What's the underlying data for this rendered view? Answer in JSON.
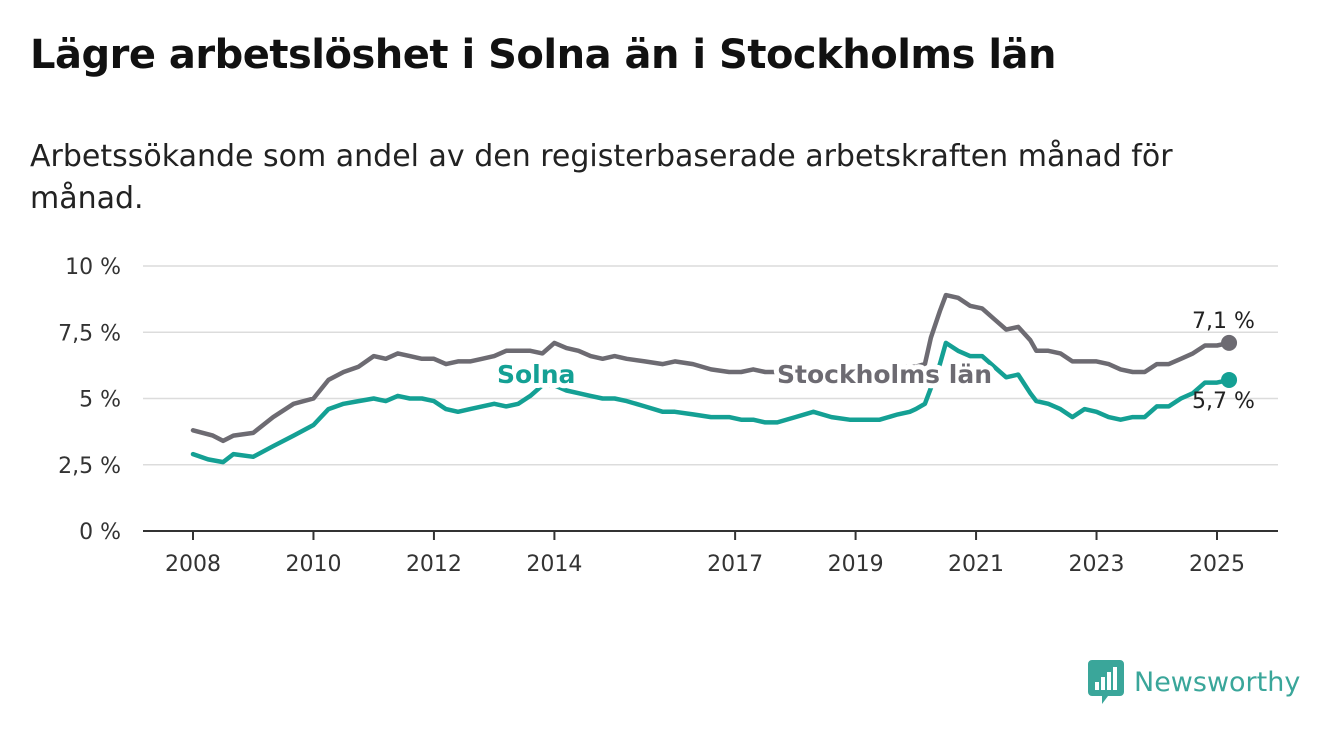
{
  "header": {
    "title": "Lägre arbetslöshet i Solna än i Stockholms län",
    "subtitle": "Arbetssökande som andel av den registerbaserade arbetskraften månad för månad."
  },
  "brand": {
    "name": "Newsworthy",
    "icon": "bar-chart-icon",
    "color": "#3aa69a"
  },
  "chart_data": {
    "type": "line",
    "xlim": [
      2008,
      2025.75
    ],
    "ylim": [
      0,
      10
    ],
    "grid": true,
    "x_ticks": [
      2008,
      2010,
      2012,
      2014,
      2017,
      2019,
      2021,
      2023,
      2025
    ],
    "x_tick_labels": [
      "2008",
      "2010",
      "2012",
      "2014",
      "2017",
      "2019",
      "2021",
      "2023",
      "2025"
    ],
    "y_ticks": [
      0,
      2.5,
      5,
      7.5,
      10
    ],
    "y_tick_labels": [
      "0 %",
      "2,5 %",
      "5 %",
      "7,5 %",
      "10 %"
    ],
    "series": [
      {
        "name": "Stockholms län",
        "color": "#6d6b72",
        "end_label": "7,1 %",
        "points": [
          [
            2008.0,
            3.8
          ],
          [
            2008.33,
            3.6
          ],
          [
            2008.5,
            3.4
          ],
          [
            2008.67,
            3.6
          ],
          [
            2009.0,
            3.7
          ],
          [
            2009.33,
            4.3
          ],
          [
            2009.67,
            4.8
          ],
          [
            2010.0,
            5.0
          ],
          [
            2010.25,
            5.7
          ],
          [
            2010.5,
            6.0
          ],
          [
            2010.75,
            6.2
          ],
          [
            2011.0,
            6.6
          ],
          [
            2011.2,
            6.5
          ],
          [
            2011.4,
            6.7
          ],
          [
            2011.6,
            6.6
          ],
          [
            2011.8,
            6.5
          ],
          [
            2012.0,
            6.5
          ],
          [
            2012.2,
            6.3
          ],
          [
            2012.4,
            6.4
          ],
          [
            2012.6,
            6.4
          ],
          [
            2012.8,
            6.5
          ],
          [
            2013.0,
            6.6
          ],
          [
            2013.2,
            6.8
          ],
          [
            2013.4,
            6.8
          ],
          [
            2013.6,
            6.8
          ],
          [
            2013.8,
            6.7
          ],
          [
            2014.0,
            7.1
          ],
          [
            2014.2,
            6.9
          ],
          [
            2014.4,
            6.8
          ],
          [
            2014.6,
            6.6
          ],
          [
            2014.8,
            6.5
          ],
          [
            2015.0,
            6.6
          ],
          [
            2015.2,
            6.5
          ],
          [
            2015.5,
            6.4
          ],
          [
            2015.8,
            6.3
          ],
          [
            2016.0,
            6.4
          ],
          [
            2016.3,
            6.3
          ],
          [
            2016.6,
            6.1
          ],
          [
            2016.9,
            6.0
          ],
          [
            2017.1,
            6.0
          ],
          [
            2017.3,
            6.1
          ],
          [
            2017.5,
            6.0
          ],
          [
            2017.7,
            6.0
          ],
          [
            2018.0,
            6.0
          ],
          [
            2018.3,
            6.1
          ],
          [
            2018.6,
            5.9
          ],
          [
            2018.9,
            5.9
          ],
          [
            2019.1,
            5.9
          ],
          [
            2019.4,
            6.0
          ],
          [
            2019.7,
            6.2
          ],
          [
            2019.9,
            6.2
          ],
          [
            2020.0,
            6.2
          ],
          [
            2020.15,
            6.3
          ],
          [
            2020.25,
            7.3
          ],
          [
            2020.4,
            8.3
          ],
          [
            2020.5,
            8.9
          ],
          [
            2020.7,
            8.8
          ],
          [
            2020.9,
            8.5
          ],
          [
            2021.1,
            8.4
          ],
          [
            2021.3,
            8.0
          ],
          [
            2021.5,
            7.6
          ],
          [
            2021.7,
            7.7
          ],
          [
            2021.9,
            7.2
          ],
          [
            2022.0,
            6.8
          ],
          [
            2022.2,
            6.8
          ],
          [
            2022.4,
            6.7
          ],
          [
            2022.6,
            6.4
          ],
          [
            2022.8,
            6.4
          ],
          [
            2023.0,
            6.4
          ],
          [
            2023.2,
            6.3
          ],
          [
            2023.4,
            6.1
          ],
          [
            2023.6,
            6.0
          ],
          [
            2023.8,
            6.0
          ],
          [
            2024.0,
            6.3
          ],
          [
            2024.2,
            6.3
          ],
          [
            2024.4,
            6.5
          ],
          [
            2024.6,
            6.7
          ],
          [
            2024.8,
            7.0
          ],
          [
            2025.0,
            7.0
          ],
          [
            2025.2,
            7.1
          ]
        ]
      },
      {
        "name": "Solna",
        "color": "#14a094",
        "end_label": "5,7 %",
        "points": [
          [
            2008.0,
            2.9
          ],
          [
            2008.25,
            2.7
          ],
          [
            2008.5,
            2.6
          ],
          [
            2008.67,
            2.9
          ],
          [
            2009.0,
            2.8
          ],
          [
            2009.33,
            3.2
          ],
          [
            2009.67,
            3.6
          ],
          [
            2010.0,
            4.0
          ],
          [
            2010.25,
            4.6
          ],
          [
            2010.5,
            4.8
          ],
          [
            2010.75,
            4.9
          ],
          [
            2011.0,
            5.0
          ],
          [
            2011.2,
            4.9
          ],
          [
            2011.4,
            5.1
          ],
          [
            2011.6,
            5.0
          ],
          [
            2011.8,
            5.0
          ],
          [
            2012.0,
            4.9
          ],
          [
            2012.2,
            4.6
          ],
          [
            2012.4,
            4.5
          ],
          [
            2012.6,
            4.6
          ],
          [
            2012.8,
            4.7
          ],
          [
            2013.0,
            4.8
          ],
          [
            2013.2,
            4.7
          ],
          [
            2013.4,
            4.8
          ],
          [
            2013.6,
            5.1
          ],
          [
            2013.8,
            5.5
          ],
          [
            2014.0,
            5.5
          ],
          [
            2014.2,
            5.3
          ],
          [
            2014.4,
            5.2
          ],
          [
            2014.6,
            5.1
          ],
          [
            2014.8,
            5.0
          ],
          [
            2015.0,
            5.0
          ],
          [
            2015.2,
            4.9
          ],
          [
            2015.5,
            4.7
          ],
          [
            2015.8,
            4.5
          ],
          [
            2016.0,
            4.5
          ],
          [
            2016.3,
            4.4
          ],
          [
            2016.6,
            4.3
          ],
          [
            2016.9,
            4.3
          ],
          [
            2017.1,
            4.2
          ],
          [
            2017.3,
            4.2
          ],
          [
            2017.5,
            4.1
          ],
          [
            2017.7,
            4.1
          ],
          [
            2018.0,
            4.3
          ],
          [
            2018.3,
            4.5
          ],
          [
            2018.6,
            4.3
          ],
          [
            2018.9,
            4.2
          ],
          [
            2019.1,
            4.2
          ],
          [
            2019.4,
            4.2
          ],
          [
            2019.7,
            4.4
          ],
          [
            2019.9,
            4.5
          ],
          [
            2020.0,
            4.6
          ],
          [
            2020.15,
            4.8
          ],
          [
            2020.25,
            5.4
          ],
          [
            2020.4,
            6.3
          ],
          [
            2020.5,
            7.1
          ],
          [
            2020.7,
            6.8
          ],
          [
            2020.9,
            6.6
          ],
          [
            2021.1,
            6.6
          ],
          [
            2021.3,
            6.2
          ],
          [
            2021.5,
            5.8
          ],
          [
            2021.7,
            5.9
          ],
          [
            2021.9,
            5.2
          ],
          [
            2022.0,
            4.9
          ],
          [
            2022.2,
            4.8
          ],
          [
            2022.4,
            4.6
          ],
          [
            2022.6,
            4.3
          ],
          [
            2022.8,
            4.6
          ],
          [
            2023.0,
            4.5
          ],
          [
            2023.2,
            4.3
          ],
          [
            2023.4,
            4.2
          ],
          [
            2023.6,
            4.3
          ],
          [
            2023.8,
            4.3
          ],
          [
            2024.0,
            4.7
          ],
          [
            2024.2,
            4.7
          ],
          [
            2024.4,
            5.0
          ],
          [
            2024.6,
            5.2
          ],
          [
            2024.8,
            5.6
          ],
          [
            2025.0,
            5.6
          ],
          [
            2025.2,
            5.7
          ]
        ]
      }
    ]
  }
}
